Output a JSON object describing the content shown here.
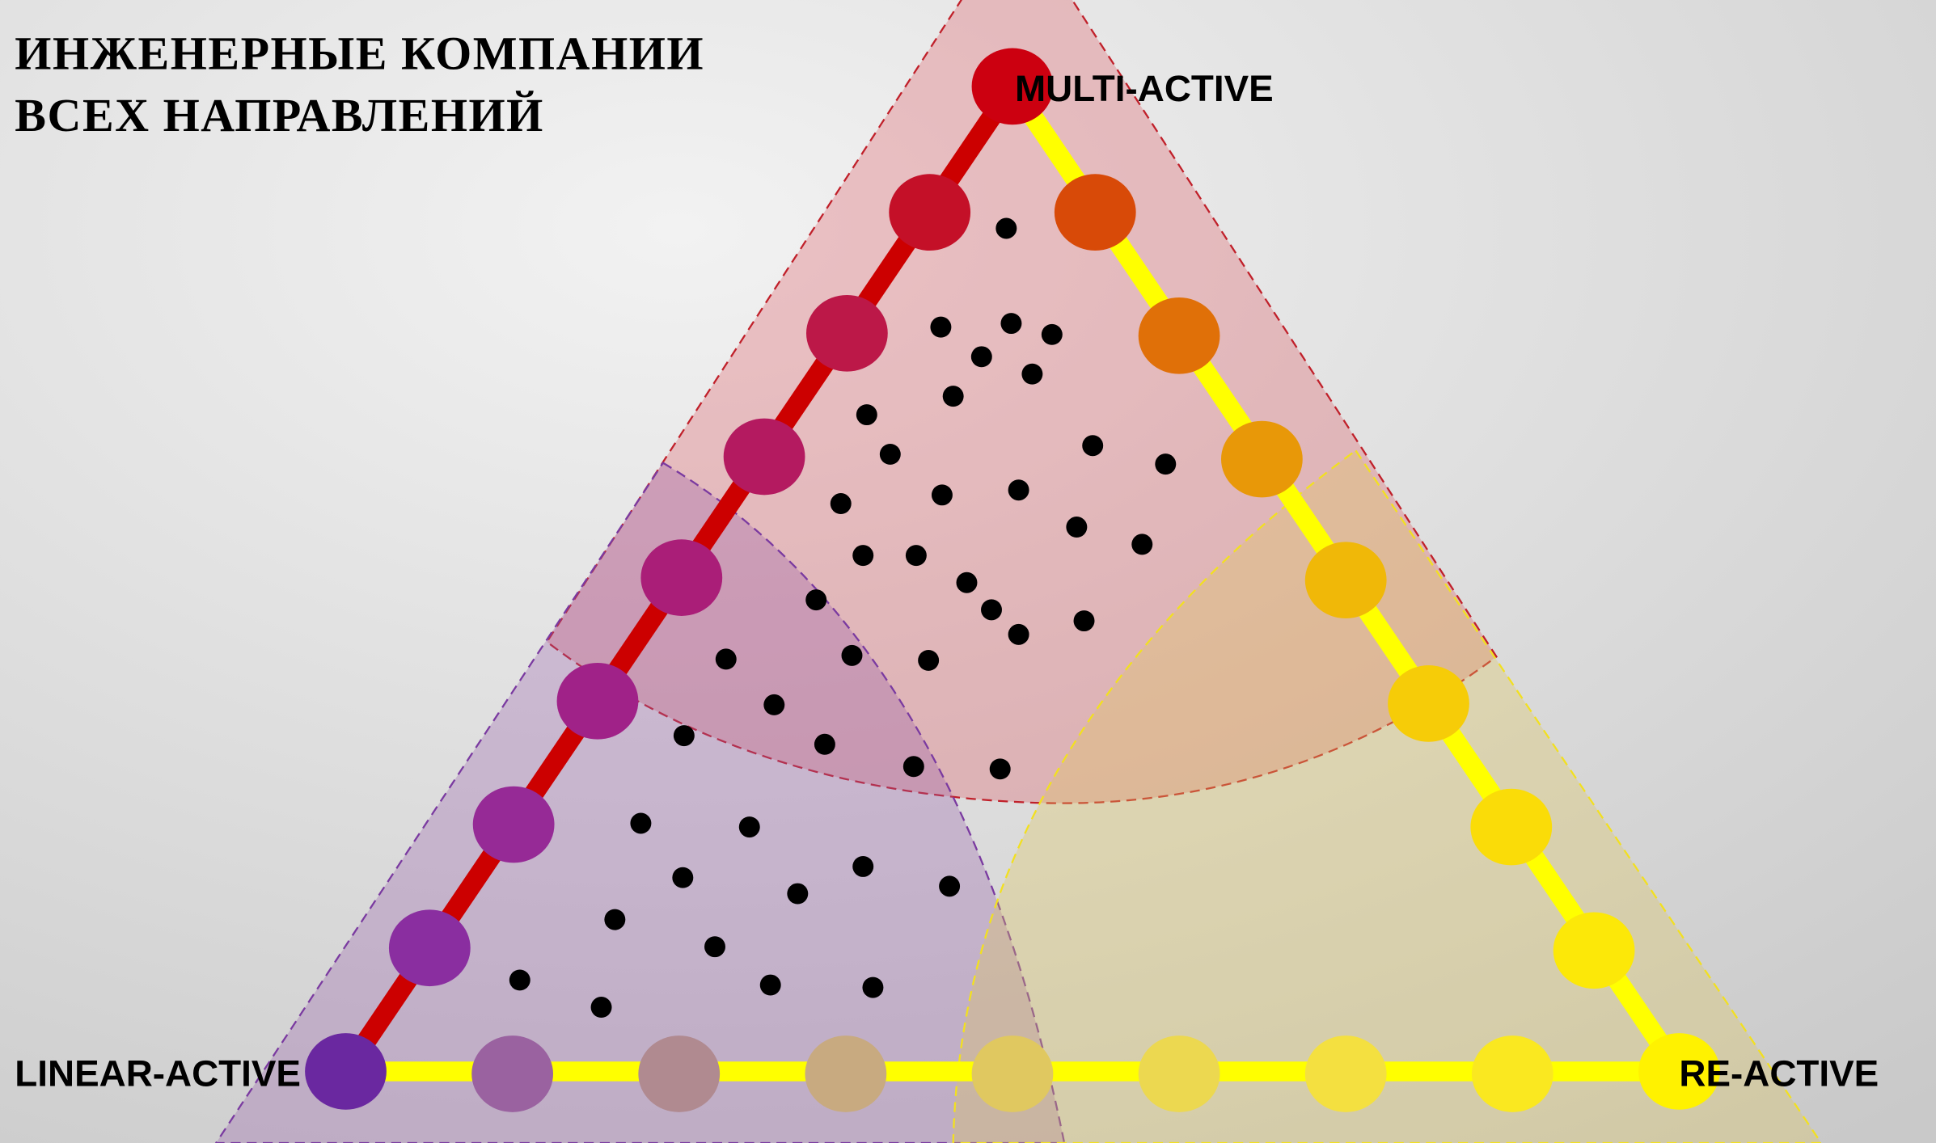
{
  "title": [
    "ИНЖЕНЕРНЫЕ КОМПАНИИ",
    "ВСЕХ НАПРАВЛЕНИЙ"
  ],
  "vertices": {
    "top": "MULTI-ACTIVE",
    "left": "LINEAR-ACTIVE",
    "right": "RE-ACTIVE"
  }
}
